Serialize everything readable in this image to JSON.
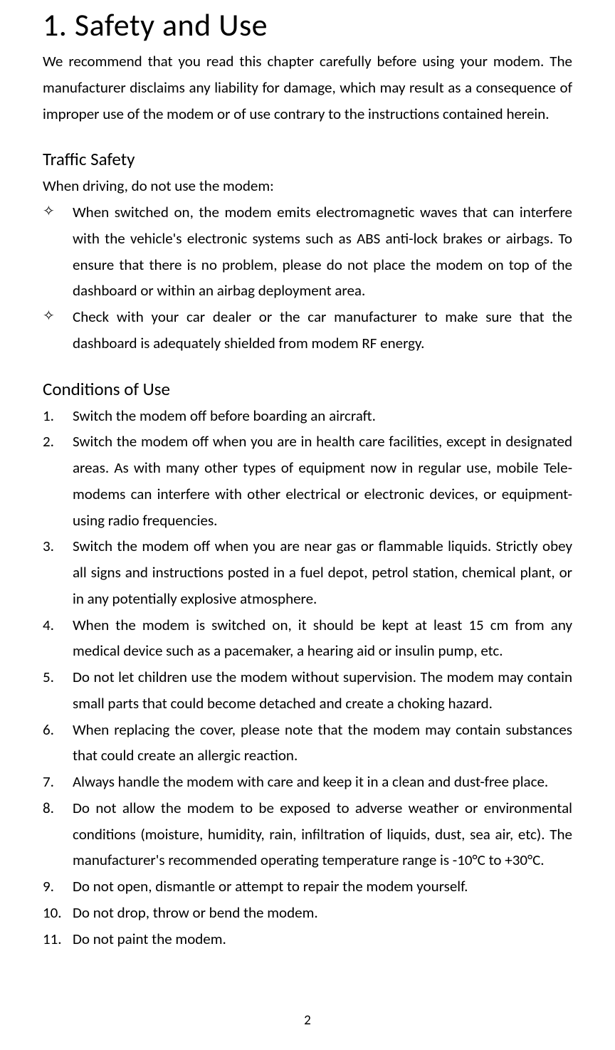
{
  "title": "1. Safety and Use",
  "intro": "We recommend that you read this chapter carefully before using your modem. The manufacturer disclaims any liability for damage, which may result as a consequence of improper use of the modem or of use contrary to the instructions contained herein.",
  "section1": {
    "heading": "Traffic Safety",
    "subheading": "When driving, do not use the modem:",
    "items": [
      "When switched on, the modem emits electromagnetic waves that can interfere with the vehicle's electronic systems such as ABS anti-lock brakes or airbags. To ensure that there is no problem, please do not place the modem on top of the dashboard or within an airbag deployment area.",
      "Check with your car dealer or the car manufacturer to make sure that the dashboard is adequately shielded from modem RF energy."
    ]
  },
  "section2": {
    "heading": "Conditions of Use",
    "items": [
      "Switch the modem off before boarding an aircraft.",
      "Switch the modem off when you are in health care facilities, except in designated areas. As with many other types of equipment now in regular use, mobile Tele-modems can interfere with other electrical or electronic devices, or equipment-using radio frequencies.",
      "Switch the modem off when you are near gas or flammable liquids. Strictly obey all signs and instructions posted in a fuel depot, petrol station, chemical plant, or in any potentially explosive atmosphere.",
      "When the modem is switched on, it should be kept at least 15 cm from any medical device such as a pacemaker, a hearing aid or insulin pump, etc.",
      "Do not let children use the modem without supervision. The modem may contain small parts that could become detached and create a choking hazard.",
      "When replacing the cover, please note that the modem may contain substances that could create an allergic reaction.",
      "Always handle the modem with care and keep it in a clean and dust-free place.",
      "Do not allow the modem to be exposed to adverse weather or environmental conditions (moisture, humidity, rain, infiltration of liquids, dust, sea air, etc). The manufacturer's recommended operating temperature range is -10°C to +30°C.",
      "Do not open, dismantle or attempt to repair the modem yourself.",
      "Do not drop, throw or bend the modem.",
      "Do not paint the modem."
    ]
  },
  "pageNumber": "2",
  "styles": {
    "background_color": "#ffffff",
    "text_color": "#000000",
    "title_fontsize": 44,
    "heading_fontsize": 25,
    "body_fontsize": 21,
    "line_height": 1.75,
    "font_family": "Calibri"
  }
}
